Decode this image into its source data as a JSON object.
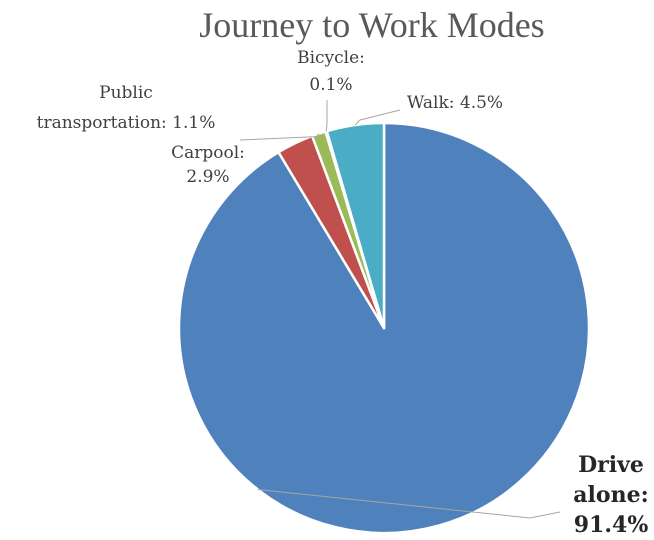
{
  "chart_data": {
    "type": "pie",
    "title": "Journey to Work Modes",
    "slices": [
      {
        "label": "Drive alone",
        "value": 91.4,
        "display": "91.4%",
        "color": "#4f81bd"
      },
      {
        "label": "Carpool",
        "value": 2.9,
        "display": "2.9%",
        "color": "#c0504d"
      },
      {
        "label": "Public transportation",
        "value": 1.1,
        "display": "1.1%",
        "color": "#9bbb59"
      },
      {
        "label": "Bicycle",
        "value": 0.1,
        "display": "0.1%",
        "color": "#8064a2"
      },
      {
        "label": "Walk",
        "value": 4.5,
        "display": "4.5%",
        "color": "#4bacc6"
      }
    ],
    "label_texts": {
      "drive_alone": [
        "Drive",
        "alone:",
        "91.4%"
      ],
      "carpool": [
        "Carpool:",
        "2.9%"
      ],
      "public_transportation": [
        "Public",
        "transportation:  1.1%"
      ],
      "bicycle": [
        "Bicycle:",
        "0.1%"
      ],
      "walk": [
        "Walk:  4.5%"
      ]
    },
    "legend": "none",
    "start_angle": "12 o'clock",
    "direction": "counterclockwise from top for small slices"
  }
}
